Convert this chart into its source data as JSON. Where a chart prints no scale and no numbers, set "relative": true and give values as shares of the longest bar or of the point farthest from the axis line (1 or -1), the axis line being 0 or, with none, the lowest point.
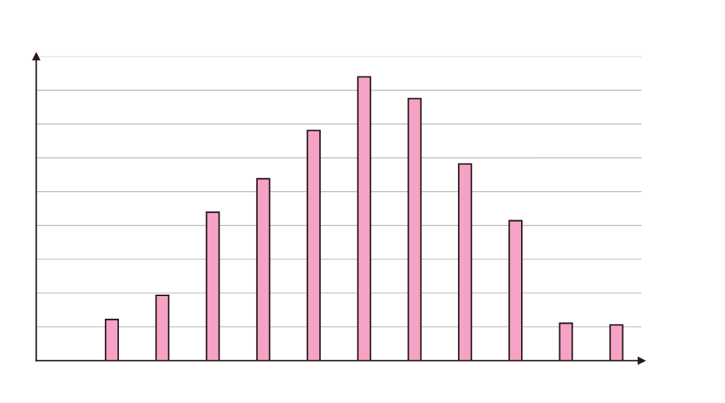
{
  "chart_data": {
    "type": "bar",
    "relative": true,
    "categories": [
      null,
      null,
      null,
      null,
      null,
      null,
      null,
      null,
      null,
      null,
      null
    ],
    "values": [
      0.145,
      0.23,
      0.523,
      0.641,
      0.811,
      1,
      0.923,
      0.693,
      0.493,
      0.132,
      0.126
    ],
    "color": "#f4a3c6",
    "grid": "y",
    "tick_labels": false
  }
}
